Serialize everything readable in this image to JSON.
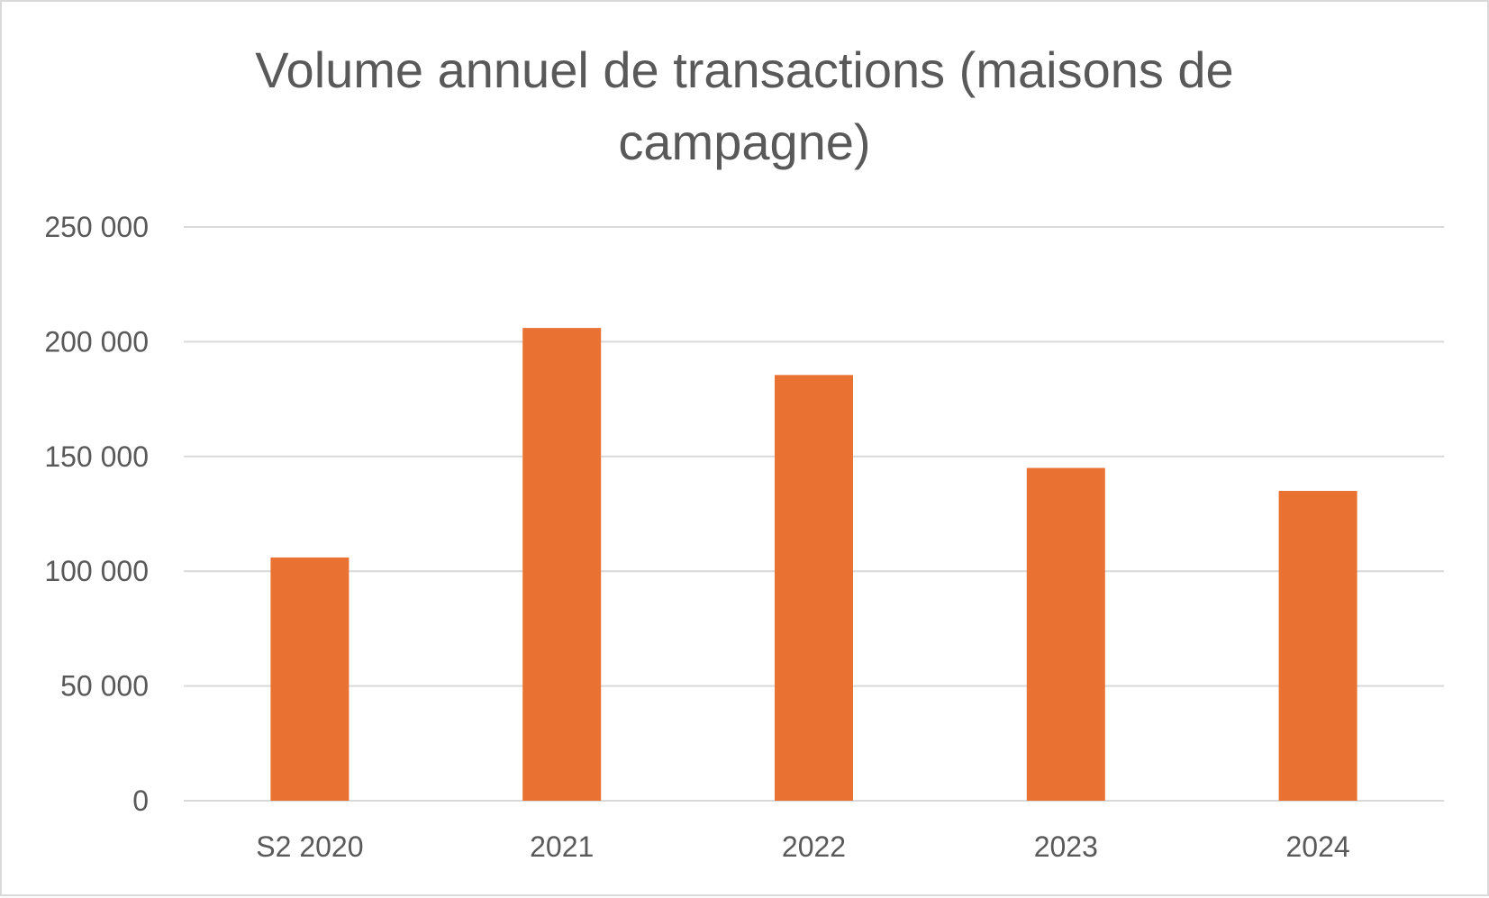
{
  "chart_data": {
    "type": "bar",
    "title": "Volume annuel de transactions (maisons de campagne)",
    "xlabel": "",
    "ylabel": "",
    "categories": [
      "S2 2020",
      "2021",
      "2022",
      "2023",
      "2024"
    ],
    "values": [
      106000,
      206000,
      185500,
      145000,
      135000
    ],
    "ylim": [
      0,
      250000
    ],
    "yticks": [
      0,
      50000,
      100000,
      150000,
      200000,
      250000
    ],
    "ytick_labels": [
      "0",
      "50 000",
      "100 000",
      "150 000",
      "200 000",
      "250 000"
    ],
    "grid": true,
    "legend": "none",
    "colors": {
      "bar": "#E97132",
      "grid": "#D9D9D9",
      "text": "#595959"
    }
  }
}
